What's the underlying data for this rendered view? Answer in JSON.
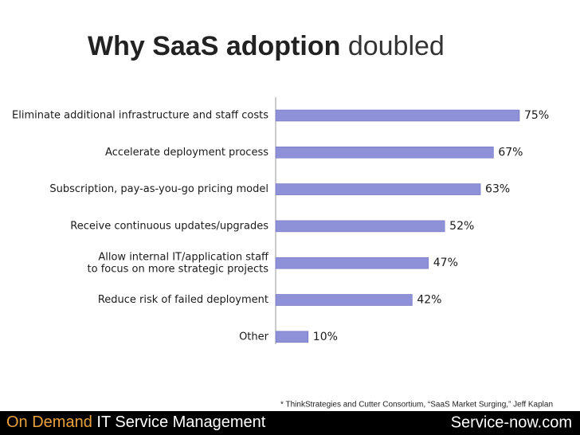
{
  "header": {
    "title_bold": "Why SaaS adoption",
    "title_light": "doubled"
  },
  "chart_data": {
    "type": "bar",
    "orientation": "horizontal",
    "categories": [
      "Eliminate additional infrastructure and staff costs",
      "Accelerate deployment process",
      "Subscription, pay-as-you-go pricing model",
      "Receive continuous updates/upgrades",
      "Allow internal IT/application staff\nto focus on more strategic projects",
      "Reduce risk of failed deployment",
      "Other"
    ],
    "values": [
      75,
      67,
      63,
      52,
      47,
      42,
      10
    ],
    "value_labels": [
      "75%",
      "67%",
      "63%",
      "52%",
      "47%",
      "42%",
      "10%"
    ],
    "color": "#8e90d8"
  },
  "footnote": "*  ThinkStrategies and Cutter Consortium, “SaaS Market Surging,” Jeff Kaplan",
  "footer": {
    "highlight": "On Demand",
    "rest": "IT Service Management",
    "brand": "Service-now.com"
  }
}
